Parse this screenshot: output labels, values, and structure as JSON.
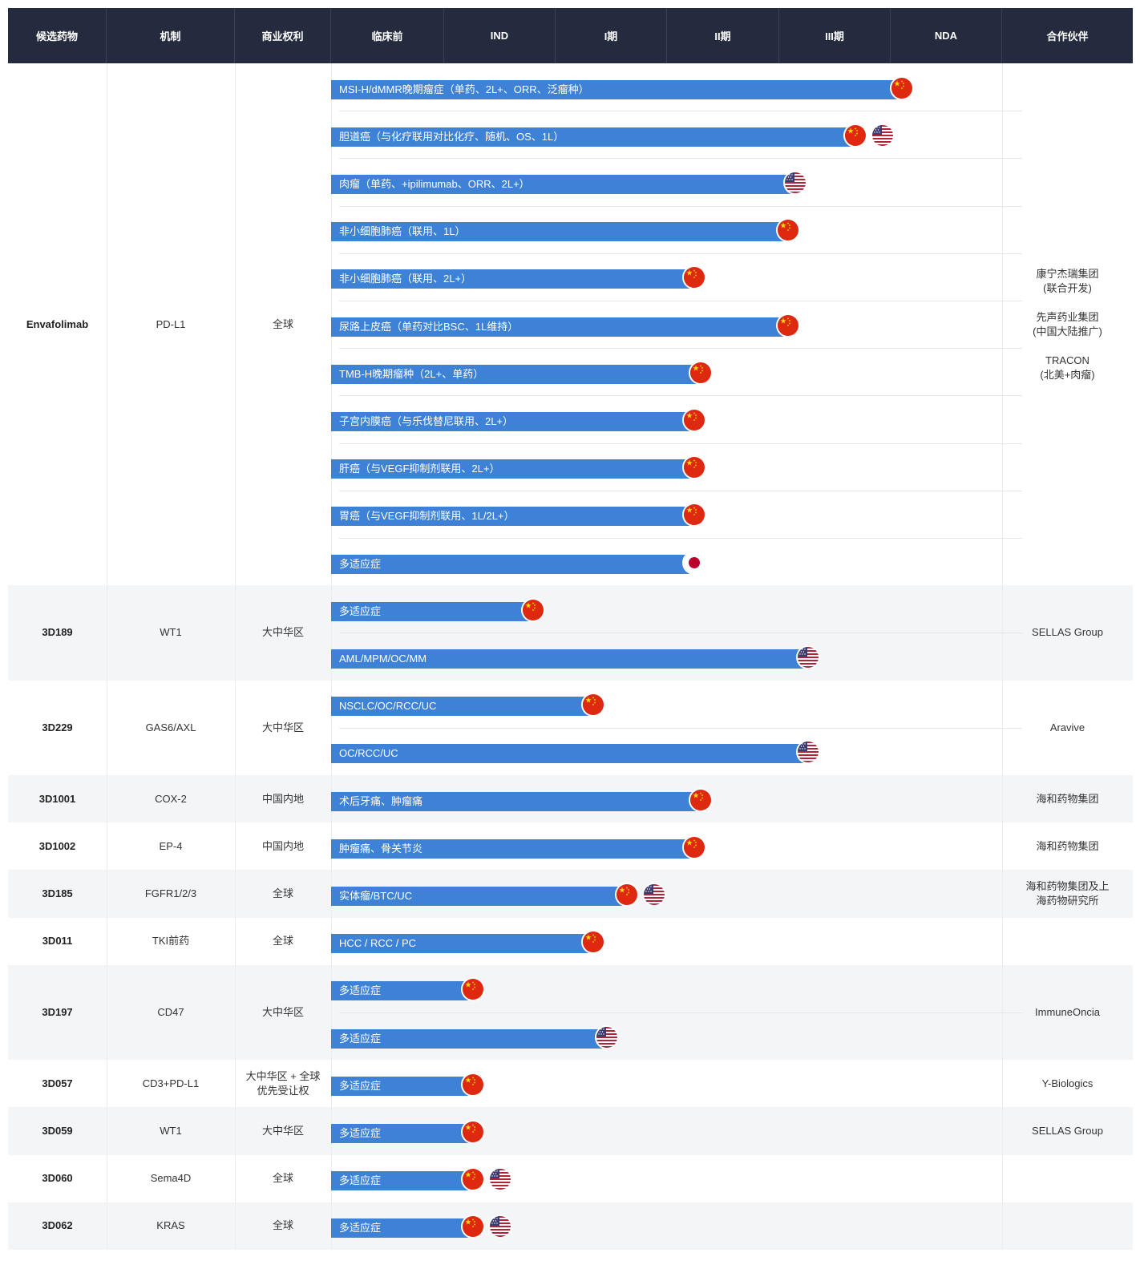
{
  "chart_data": {
    "type": "table",
    "columns": {
      "candidate": "候选药物",
      "mechanism": "机制",
      "rights": "商业权利",
      "preclinical": "临床前",
      "ind": "IND",
      "phase1": "I期",
      "phase2": "II期",
      "phase3": "III期",
      "nda": "NDA",
      "partner": "合作伙伴"
    },
    "groups": [
      {
        "drug": "Envafolimab",
        "mechanism": "PD-L1",
        "rights": "全球",
        "partner": "康宁杰瑞集团\n(联合开发)\n\n先声药业集团\n(中国大陆推广)\n\nTRACON\n(北美+肉瘤)",
        "bg": "plain",
        "programs": [
          {
            "label": "MSI-H/dMMR晚期瘤症（单药、2L+、ORR、泛瘤种）",
            "progress": 0.85,
            "flags": [
              "cn-flag"
            ]
          },
          {
            "label": "胆道癌（与化疗联用对比化疗、随机、OS、1L）",
            "progress": 0.78,
            "flags": [
              "cn-flag",
              "us-flag"
            ]
          },
          {
            "label": "肉瘤（单药、+ipilimumab、ORR、2L+）",
            "progress": 0.69,
            "flags": [
              "us-flag"
            ]
          },
          {
            "label": "非小细胞肺癌（联用、1L）",
            "progress": 0.68,
            "flags": [
              "cn-flag"
            ]
          },
          {
            "label": "非小细胞肺癌（联用、2L+）",
            "progress": 0.54,
            "flags": [
              "cn-flag"
            ]
          },
          {
            "label": "尿路上皮癌（单药对比BSC、1L维持）",
            "progress": 0.68,
            "flags": [
              "cn-flag"
            ]
          },
          {
            "label": "TMB-H晚期瘤种（2L+、单药）",
            "progress": 0.55,
            "flags": [
              "cn-flag"
            ]
          },
          {
            "label": "子宫内膜癌（与乐伐替尼联用、2L+）",
            "progress": 0.54,
            "flags": [
              "cn-flag"
            ]
          },
          {
            "label": "肝癌（与VEGF抑制剂联用、2L+）",
            "progress": 0.54,
            "flags": [
              "cn-flag"
            ]
          },
          {
            "label": "胃癌（与VEGF抑制剂联用、1L/2L+）",
            "progress": 0.54,
            "flags": [
              "cn-flag"
            ]
          },
          {
            "label": "多适应症",
            "progress": 0.54,
            "flags": [
              "jp-flag"
            ]
          }
        ]
      },
      {
        "drug": "3D189",
        "mechanism": "WT1",
        "rights": "大中华区",
        "partner": "SELLAS Group",
        "bg": "alt",
        "programs": [
          {
            "label": "多适应症",
            "progress": 0.3,
            "flags": [
              "cn-flag"
            ]
          },
          {
            "label": "AML/MPM/OC/MM",
            "progress": 0.71,
            "flags": [
              "us-flag"
            ]
          }
        ]
      },
      {
        "drug": "3D229",
        "mechanism": "GAS6/AXL",
        "rights": "大中华区",
        "partner": "Aravive",
        "bg": "plain",
        "programs": [
          {
            "label": "NSCLC/OC/RCC/UC",
            "progress": 0.39,
            "flags": [
              "cn-flag"
            ]
          },
          {
            "label": "OC/RCC/UC",
            "progress": 0.71,
            "flags": [
              "us-flag"
            ]
          }
        ]
      },
      {
        "drug": "3D1001",
        "mechanism": "COX-2",
        "rights": "中国内地",
        "partner": "海和药物集团",
        "bg": "alt",
        "programs": [
          {
            "label": "术后牙痛、肿瘤痛",
            "progress": 0.55,
            "flags": [
              "cn-flag"
            ]
          }
        ]
      },
      {
        "drug": "3D1002",
        "mechanism": "EP-4",
        "rights": "中国内地",
        "partner": "海和药物集团",
        "bg": "plain",
        "programs": [
          {
            "label": "肿瘤痛、骨关节炎",
            "progress": 0.54,
            "flags": [
              "cn-flag"
            ]
          }
        ]
      },
      {
        "drug": "3D185",
        "mechanism": "FGFR1/2/3",
        "rights": "全球",
        "partner": "海和药物集团及上\n海药物研究所",
        "bg": "alt",
        "programs": [
          {
            "label": "实体瘤/BTC/UC",
            "progress": 0.44,
            "flags": [
              "cn-flag",
              "us-flag"
            ]
          }
        ]
      },
      {
        "drug": "3D011",
        "mechanism": "TKI前药",
        "rights": "全球",
        "partner": "",
        "bg": "plain",
        "programs": [
          {
            "label": "HCC / RCC / PC",
            "progress": 0.39,
            "flags": [
              "cn-flag"
            ]
          }
        ]
      },
      {
        "drug": "3D197",
        "mechanism": "CD47",
        "rights": "大中华区",
        "partner": "ImmuneOncia",
        "bg": "alt",
        "programs": [
          {
            "label": "多适应症",
            "progress": 0.21,
            "flags": [
              "cn-flag"
            ]
          },
          {
            "label": "多适应症",
            "progress": 0.41,
            "flags": [
              "us-flag"
            ]
          }
        ]
      },
      {
        "drug": "3D057",
        "mechanism": "CD3+PD-L1",
        "rights": "大中华区 + 全球\n优先受让权",
        "partner": "Y-Biologics",
        "bg": "plain",
        "programs": [
          {
            "label": "多适应症",
            "progress": 0.21,
            "flags": [
              "cn-flag"
            ]
          }
        ]
      },
      {
        "drug": "3D059",
        "mechanism": "WT1",
        "rights": "大中华区",
        "partner": "SELLAS Group",
        "bg": "alt",
        "programs": [
          {
            "label": "多适应症",
            "progress": 0.21,
            "flags": [
              "cn-flag"
            ]
          }
        ]
      },
      {
        "drug": "3D060",
        "mechanism": "Sema4D",
        "rights": "全球",
        "partner": "",
        "bg": "plain",
        "programs": [
          {
            "label": "多适应症",
            "progress": 0.21,
            "flags": [
              "cn-flag",
              "us-flag"
            ]
          }
        ]
      },
      {
        "drug": "3D062",
        "mechanism": "KRAS",
        "rights": "全球",
        "partner": "",
        "bg": "alt",
        "programs": [
          {
            "label": "多适应症",
            "progress": 0.21,
            "flags": [
              "cn-flag",
              "us-flag"
            ]
          }
        ]
      }
    ]
  },
  "colors": {
    "header_bg": "#252b3f",
    "header_text": "#ffffff",
    "bar": "#3d82d6",
    "alt_row": "#f4f5f7",
    "cn_red": "#de2910",
    "cn_star": "#ffde00",
    "us_red": "#b22234",
    "us_blue": "#3c3b6e",
    "jp_red": "#bc002d"
  }
}
